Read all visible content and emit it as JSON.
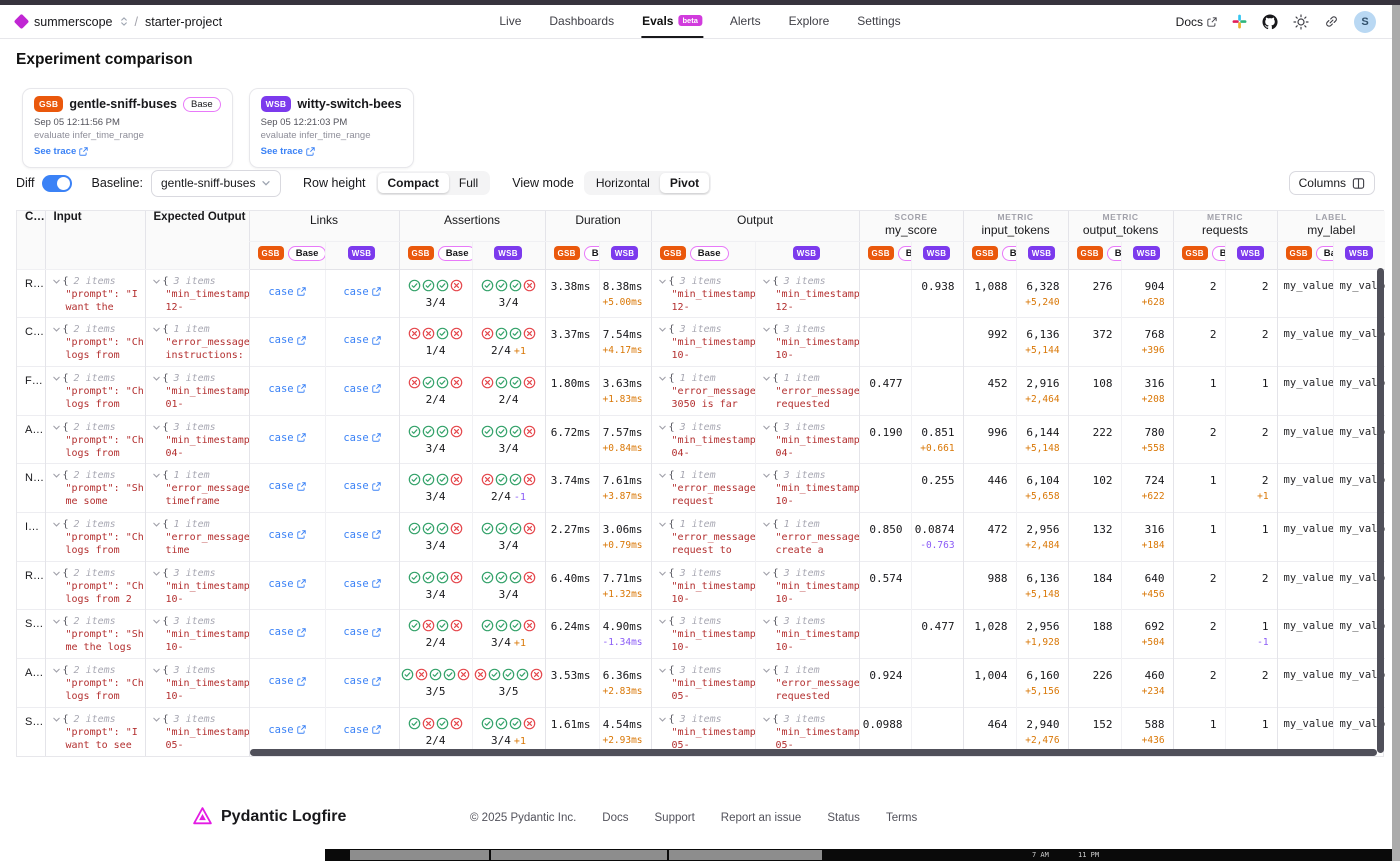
{
  "header": {
    "org": "summerscope",
    "separator": "/",
    "project": "starter-project",
    "nav": [
      {
        "label": "Live",
        "active": false
      },
      {
        "label": "Dashboards",
        "active": false
      },
      {
        "label": "Evals",
        "active": true,
        "badge": "beta"
      },
      {
        "label": "Alerts",
        "active": false
      },
      {
        "label": "Explore",
        "active": false
      },
      {
        "label": "Settings",
        "active": false
      }
    ],
    "docs_label": "Docs",
    "avatar_initial": "S"
  },
  "page": {
    "title": "Experiment comparison"
  },
  "experiments": [
    {
      "abbr": "GSB",
      "color": "#ea580c",
      "name": "gentle-sniff-buses",
      "base": true,
      "base_label": "Base",
      "timestamp": "Sep 05 12:11:56 PM",
      "task": "evaluate infer_time_range",
      "trace_label": "See trace"
    },
    {
      "abbr": "WSB",
      "color": "#7c3aed",
      "name": "witty-switch-bees",
      "base": false,
      "timestamp": "Sep 05 12:21:03 PM",
      "task": "evaluate infer_time_range",
      "trace_label": "See trace"
    }
  ],
  "toolbar": {
    "diff_label": "Diff",
    "diff_on": true,
    "baseline_label": "Baseline:",
    "baseline_value": "gentle-sniff-buses",
    "row_height_label": "Row height",
    "row_height_options": [
      "Compact",
      "Full"
    ],
    "row_height_active": "Compact",
    "view_mode_label": "View mode",
    "view_mode_options": [
      "Horizontal",
      "Pivot"
    ],
    "view_mode_active": "Pivot",
    "columns_label": "Columns"
  },
  "table": {
    "fixed_headers": {
      "case": "C…",
      "input": "Input",
      "expected": "Expected Output"
    },
    "badges": {
      "gsb": "GSB",
      "wsb": "WSB",
      "base": "Base"
    },
    "groups": [
      {
        "key": "links",
        "kicker": "",
        "label": "Links"
      },
      {
        "key": "assertions",
        "kicker": "",
        "label": "Assertions"
      },
      {
        "key": "duration",
        "kicker": "",
        "label": "Duration"
      },
      {
        "key": "output",
        "kicker": "",
        "label": "Output"
      },
      {
        "key": "score",
        "kicker": "SCORE",
        "label": "my_score"
      },
      {
        "key": "input_tokens",
        "kicker": "METRIC",
        "label": "input_tokens"
      },
      {
        "key": "output_tokens",
        "kicker": "METRIC",
        "label": "output_tokens"
      },
      {
        "key": "requests",
        "kicker": "METRIC",
        "label": "requests"
      },
      {
        "key": "label",
        "kicker": "LABEL",
        "label": "my_label"
      }
    ],
    "link_text": "case",
    "rows": [
      {
        "case": "R…",
        "input": {
          "count": "2 items",
          "lines": [
            "\"prompt\": \"I",
            "want the"
          ]
        },
        "expected": {
          "count": "3 items",
          "lines": [
            "\"min_timestamp",
            "12-"
          ]
        },
        "assertions": {
          "gsb": {
            "icons": "cccx",
            "frac": "3/4",
            "diff": ""
          },
          "wsb": {
            "icons": "cccx",
            "frac": "3/4",
            "diff": ""
          }
        },
        "duration": {
          "gsb": "3.38ms",
          "wsb": "8.38ms",
          "diff": "+5.00ms"
        },
        "output": {
          "gsb": {
            "count": "3 items",
            "lines": [
              "\"min_timestamp",
              "12-"
            ]
          },
          "wsb": {
            "count": "3 items",
            "lines": [
              "\"min_timestamp",
              "12-"
            ]
          }
        },
        "score": {
          "gsb": "",
          "wsb": "0.938",
          "diff": ""
        },
        "input_tokens": {
          "gsb": "1,088",
          "wsb": "6,328",
          "diff": "+5,240"
        },
        "output_tokens": {
          "gsb": "276",
          "wsb": "904",
          "diff": "+628"
        },
        "requests": {
          "gsb": "2",
          "wsb": "2",
          "diff": ""
        },
        "label": {
          "gsb": "my_value_",
          "wsb": "my_value_"
        }
      },
      {
        "case": "C…",
        "input": {
          "count": "2 items",
          "lines": [
            "\"prompt\": \"Ch",
            "logs from"
          ]
        },
        "expected": {
          "count": "1 item",
          "lines": [
            "\"error_message",
            "instructions:"
          ]
        },
        "assertions": {
          "gsb": {
            "icons": "xxcx",
            "frac": "1/4",
            "diff": ""
          },
          "wsb": {
            "icons": "xccx",
            "frac": "2/4",
            "diff": "+1"
          }
        },
        "duration": {
          "gsb": "3.37ms",
          "wsb": "7.54ms",
          "diff": "+4.17ms"
        },
        "output": {
          "gsb": {
            "count": "3 items",
            "lines": [
              "\"min_timestamp",
              "10-"
            ]
          },
          "wsb": {
            "count": "3 items",
            "lines": [
              "\"min_timestamp",
              "10-"
            ]
          }
        },
        "score": {
          "gsb": "",
          "wsb": "",
          "diff": ""
        },
        "input_tokens": {
          "gsb": "992",
          "wsb": "6,136",
          "diff": "+5,144"
        },
        "output_tokens": {
          "gsb": "372",
          "wsb": "768",
          "diff": "+396"
        },
        "requests": {
          "gsb": "2",
          "wsb": "2",
          "diff": ""
        },
        "label": {
          "gsb": "my_value_",
          "wsb": "my_value_"
        }
      },
      {
        "case": "F…",
        "input": {
          "count": "2 items",
          "lines": [
            "\"prompt\": \"Ch",
            "logs from"
          ]
        },
        "expected": {
          "count": "3 items",
          "lines": [
            "\"min_timestamp",
            "01-"
          ]
        },
        "assertions": {
          "gsb": {
            "icons": "xccx",
            "frac": "2/4",
            "diff": ""
          },
          "wsb": {
            "icons": "xccx",
            "frac": "2/4",
            "diff": ""
          }
        },
        "duration": {
          "gsb": "1.80ms",
          "wsb": "3.63ms",
          "diff": "+1.83ms"
        },
        "output": {
          "gsb": {
            "count": "1 item",
            "lines": [
              "\"error_message",
              "3050 is far"
            ]
          },
          "wsb": {
            "count": "1 item",
            "lines": [
              "\"error_message",
              "requested"
            ]
          }
        },
        "score": {
          "gsb": "0.477",
          "wsb": "",
          "diff": ""
        },
        "input_tokens": {
          "gsb": "452",
          "wsb": "2,916",
          "diff": "+2,464"
        },
        "output_tokens": {
          "gsb": "108",
          "wsb": "316",
          "diff": "+208"
        },
        "requests": {
          "gsb": "1",
          "wsb": "1",
          "diff": ""
        },
        "label": {
          "gsb": "my_value_",
          "wsb": "my_value_"
        }
      },
      {
        "case": "A…",
        "input": {
          "count": "2 items",
          "lines": [
            "\"prompt\": \"Ch",
            "logs from"
          ]
        },
        "expected": {
          "count": "3 items",
          "lines": [
            "\"min_timestamp",
            "04-"
          ]
        },
        "assertions": {
          "gsb": {
            "icons": "cccx",
            "frac": "3/4",
            "diff": ""
          },
          "wsb": {
            "icons": "cccx",
            "frac": "3/4",
            "diff": ""
          }
        },
        "duration": {
          "gsb": "6.72ms",
          "wsb": "7.57ms",
          "diff": "+0.84ms"
        },
        "output": {
          "gsb": {
            "count": "3 items",
            "lines": [
              "\"min_timestamp",
              "04-"
            ]
          },
          "wsb": {
            "count": "3 items",
            "lines": [
              "\"min_timestamp",
              "04-"
            ]
          }
        },
        "score": {
          "gsb": "0.190",
          "wsb": "0.851",
          "diff": "+0.661"
        },
        "input_tokens": {
          "gsb": "996",
          "wsb": "6,144",
          "diff": "+5,148"
        },
        "output_tokens": {
          "gsb": "222",
          "wsb": "780",
          "diff": "+558"
        },
        "requests": {
          "gsb": "2",
          "wsb": "2",
          "diff": ""
        },
        "label": {
          "gsb": "my_value_",
          "wsb": "my_value_"
        }
      },
      {
        "case": "N…",
        "input": {
          "count": "2 items",
          "lines": [
            "\"prompt\": \"Sh",
            "me some"
          ]
        },
        "expected": {
          "count": "1 item",
          "lines": [
            "\"error_message",
            "timeframe"
          ]
        },
        "assertions": {
          "gsb": {
            "icons": "cccx",
            "frac": "3/4",
            "diff": ""
          },
          "wsb": {
            "icons": "xccx",
            "frac": "2/4",
            "diff": "-1"
          }
        },
        "duration": {
          "gsb": "3.74ms",
          "wsb": "7.61ms",
          "diff": "+3.87ms"
        },
        "output": {
          "gsb": {
            "count": "1 item",
            "lines": [
              "\"error_message",
              "request"
            ]
          },
          "wsb": {
            "count": "3 items",
            "lines": [
              "\"min_timestamp",
              "10-"
            ]
          }
        },
        "score": {
          "gsb": "",
          "wsb": "0.255",
          "diff": ""
        },
        "input_tokens": {
          "gsb": "446",
          "wsb": "6,104",
          "diff": "+5,658"
        },
        "output_tokens": {
          "gsb": "102",
          "wsb": "724",
          "diff": "+622"
        },
        "requests": {
          "gsb": "1",
          "wsb": "2",
          "diff": "+1"
        },
        "label": {
          "gsb": "my_value_",
          "wsb": "my_value_"
        }
      },
      {
        "case": "I…",
        "input": {
          "count": "2 items",
          "lines": [
            "\"prompt\": \"Ch",
            "logs from"
          ]
        },
        "expected": {
          "count": "1 item",
          "lines": [
            "\"error_message",
            "time"
          ]
        },
        "assertions": {
          "gsb": {
            "icons": "cccx",
            "frac": "3/4",
            "diff": ""
          },
          "wsb": {
            "icons": "cccx",
            "frac": "3/4",
            "diff": ""
          }
        },
        "duration": {
          "gsb": "2.27ms",
          "wsb": "3.06ms",
          "diff": "+0.79ms"
        },
        "output": {
          "gsb": {
            "count": "1 item",
            "lines": [
              "\"error_message",
              "request to"
            ]
          },
          "wsb": {
            "count": "1 item",
            "lines": [
              "\"error_message",
              "create a"
            ]
          }
        },
        "score": {
          "gsb": "0.850",
          "wsb": "0.0874",
          "diff": "-0.763"
        },
        "input_tokens": {
          "gsb": "472",
          "wsb": "2,956",
          "diff": "+2,484"
        },
        "output_tokens": {
          "gsb": "132",
          "wsb": "316",
          "diff": "+184"
        },
        "requests": {
          "gsb": "1",
          "wsb": "1",
          "diff": ""
        },
        "label": {
          "gsb": "my_value_",
          "wsb": "my_value_"
        }
      },
      {
        "case": "R…",
        "input": {
          "count": "2 items",
          "lines": [
            "\"prompt\": \"Ch",
            "logs from 2"
          ]
        },
        "expected": {
          "count": "3 items",
          "lines": [
            "\"min_timestamp",
            "10-"
          ]
        },
        "assertions": {
          "gsb": {
            "icons": "cccx",
            "frac": "3/4",
            "diff": ""
          },
          "wsb": {
            "icons": "cccx",
            "frac": "3/4",
            "diff": ""
          }
        },
        "duration": {
          "gsb": "6.40ms",
          "wsb": "7.71ms",
          "diff": "+1.32ms"
        },
        "output": {
          "gsb": {
            "count": "3 items",
            "lines": [
              "\"min_timestamp",
              "10-"
            ]
          },
          "wsb": {
            "count": "3 items",
            "lines": [
              "\"min_timestamp",
              "10-"
            ]
          }
        },
        "score": {
          "gsb": "0.574",
          "wsb": "",
          "diff": ""
        },
        "input_tokens": {
          "gsb": "988",
          "wsb": "6,136",
          "diff": "+5,148"
        },
        "output_tokens": {
          "gsb": "184",
          "wsb": "640",
          "diff": "+456"
        },
        "requests": {
          "gsb": "2",
          "wsb": "2",
          "diff": ""
        },
        "label": {
          "gsb": "my_value_",
          "wsb": "my_value_"
        }
      },
      {
        "case": "S…",
        "input": {
          "count": "2 items",
          "lines": [
            "\"prompt\": \"Sh",
            "me the logs"
          ]
        },
        "expected": {
          "count": "3 items",
          "lines": [
            "\"min_timestamp",
            "10-"
          ]
        },
        "assertions": {
          "gsb": {
            "icons": "cxcx",
            "frac": "2/4",
            "diff": ""
          },
          "wsb": {
            "icons": "cccx",
            "frac": "3/4",
            "diff": "+1"
          }
        },
        "duration": {
          "gsb": "6.24ms",
          "wsb": "4.90ms",
          "diff": "-1.34ms"
        },
        "output": {
          "gsb": {
            "count": "3 items",
            "lines": [
              "\"min_timestamp",
              "10-"
            ]
          },
          "wsb": {
            "count": "3 items",
            "lines": [
              "\"min_timestamp",
              "10-"
            ]
          }
        },
        "score": {
          "gsb": "",
          "wsb": "0.477",
          "diff": ""
        },
        "input_tokens": {
          "gsb": "1,028",
          "wsb": "2,956",
          "diff": "+1,928"
        },
        "output_tokens": {
          "gsb": "188",
          "wsb": "692",
          "diff": "+504"
        },
        "requests": {
          "gsb": "2",
          "wsb": "1",
          "diff": "-1"
        },
        "label": {
          "gsb": "my_value_",
          "wsb": "my_value_"
        }
      },
      {
        "case": "A…",
        "input": {
          "count": "2 items",
          "lines": [
            "\"prompt\": \"Ch",
            "logs from"
          ]
        },
        "expected": {
          "count": "3 items",
          "lines": [
            "\"min_timestamp",
            "10-"
          ]
        },
        "assertions": {
          "gsb": {
            "icons": "cxccx",
            "frac": "3/5",
            "diff": ""
          },
          "wsb": {
            "icons": "xcccx",
            "frac": "3/5",
            "diff": ""
          }
        },
        "duration": {
          "gsb": "3.53ms",
          "wsb": "6.36ms",
          "diff": "+2.83ms"
        },
        "output": {
          "gsb": {
            "count": "3 items",
            "lines": [
              "\"min_timestamp",
              "05-"
            ]
          },
          "wsb": {
            "count": "1 item",
            "lines": [
              "\"error_message",
              "requested"
            ]
          }
        },
        "score": {
          "gsb": "0.924",
          "wsb": "",
          "diff": ""
        },
        "input_tokens": {
          "gsb": "1,004",
          "wsb": "6,160",
          "diff": "+5,156"
        },
        "output_tokens": {
          "gsb": "226",
          "wsb": "460",
          "diff": "+234"
        },
        "requests": {
          "gsb": "2",
          "wsb": "2",
          "diff": ""
        },
        "label": {
          "gsb": "my_value_",
          "wsb": "my_value_"
        }
      },
      {
        "case": "S…",
        "input": {
          "count": "2 items",
          "lines": [
            "\"prompt\": \"I",
            "want to see"
          ]
        },
        "expected": {
          "count": "3 items",
          "lines": [
            "\"min_timestamp",
            "05-"
          ]
        },
        "assertions": {
          "gsb": {
            "icons": "cxcx",
            "frac": "2/4",
            "diff": ""
          },
          "wsb": {
            "icons": "cccx",
            "frac": "3/4",
            "diff": "+1"
          }
        },
        "duration": {
          "gsb": "1.61ms",
          "wsb": "4.54ms",
          "diff": "+2.93ms"
        },
        "output": {
          "gsb": {
            "count": "3 items",
            "lines": [
              "\"min_timestamp",
              "05-"
            ]
          },
          "wsb": {
            "count": "3 items",
            "lines": [
              "\"min_timestamp",
              "05-"
            ]
          }
        },
        "score": {
          "gsb": "0.0988",
          "wsb": "",
          "diff": ""
        },
        "input_tokens": {
          "gsb": "464",
          "wsb": "2,940",
          "diff": "+2,476"
        },
        "output_tokens": {
          "gsb": "152",
          "wsb": "588",
          "diff": "+436"
        },
        "requests": {
          "gsb": "1",
          "wsb": "1",
          "diff": ""
        },
        "label": {
          "gsb": "my_value_",
          "wsb": "my_value_"
        }
      }
    ]
  },
  "footer": {
    "brand": "Pydantic Logfire",
    "copyright": "© 2025 Pydantic Inc.",
    "links": [
      "Docs",
      "Support",
      "Report an issue",
      "Status",
      "Terms"
    ]
  },
  "os_bar": {
    "labels": [
      "7 AM",
      "11 PM"
    ]
  },
  "colors": {
    "gsb": "#ea580c",
    "wsb": "#7c3aed",
    "base_pill_border": "#e879f9",
    "beta_badge": "#d13bdd",
    "link_blue": "#3b82f6",
    "check_green": "#34a26a",
    "cross_red": "#e5484d",
    "diff_up": "#d97706",
    "diff_down": "#8b5cf6",
    "json_red": "#b32f2f",
    "accent": "#c026d3"
  }
}
